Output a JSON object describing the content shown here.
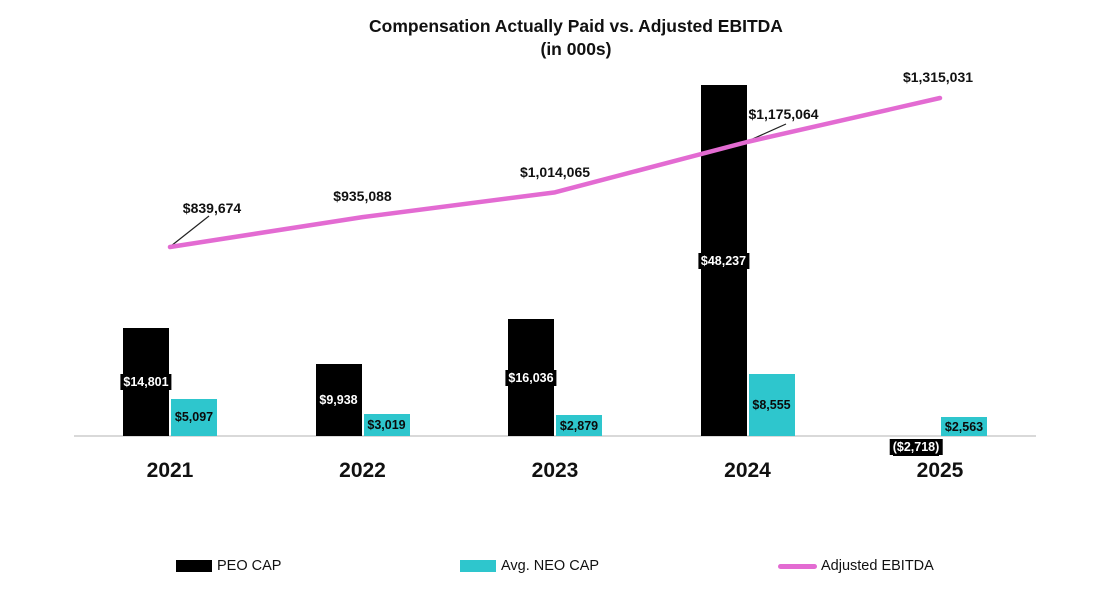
{
  "title": {
    "line1": "Compensation Actually Paid vs. Adjusted EBITDA",
    "line2": "(in 000s)"
  },
  "chart_data": {
    "type": "bar",
    "subtype": "grouped bars with overlay line",
    "title": "Compensation Actually Paid vs. Adjusted EBITDA (in 000s)",
    "units": "in 000s",
    "grid": false,
    "legend_position": "bottom",
    "axis_color": "#d9d9d9",
    "categories": [
      "2021",
      "2022",
      "2023",
      "2024",
      "2025"
    ],
    "series": [
      {
        "name": "PEO CAP",
        "kind": "bar",
        "color": "#000000",
        "label_text_color": "#ffffff",
        "values": [
          14801,
          9938,
          16036,
          48237,
          -2718
        ],
        "labels": [
          "$14,801",
          "$9,938",
          "$16,036",
          "$48,237",
          "($2,718)"
        ]
      },
      {
        "name": "Avg. NEO CAP",
        "kind": "bar",
        "color": "#2ec6cd",
        "label_text_color": "#0b0b0b",
        "values": [
          5097,
          3019,
          2879,
          8555,
          2563
        ],
        "labels": [
          "$5,097",
          "$3,019",
          "$2,879",
          "$8,555",
          "$2,563"
        ]
      },
      {
        "name": "Adjusted EBITDA",
        "kind": "line",
        "color": "#e36bd2",
        "values": [
          839674,
          935088,
          1014065,
          1175064,
          1315031
        ],
        "labels": [
          "$839,674",
          "$935,088",
          "$1,014,065",
          "$1,175,064",
          "$1,315,031"
        ]
      }
    ]
  }
}
